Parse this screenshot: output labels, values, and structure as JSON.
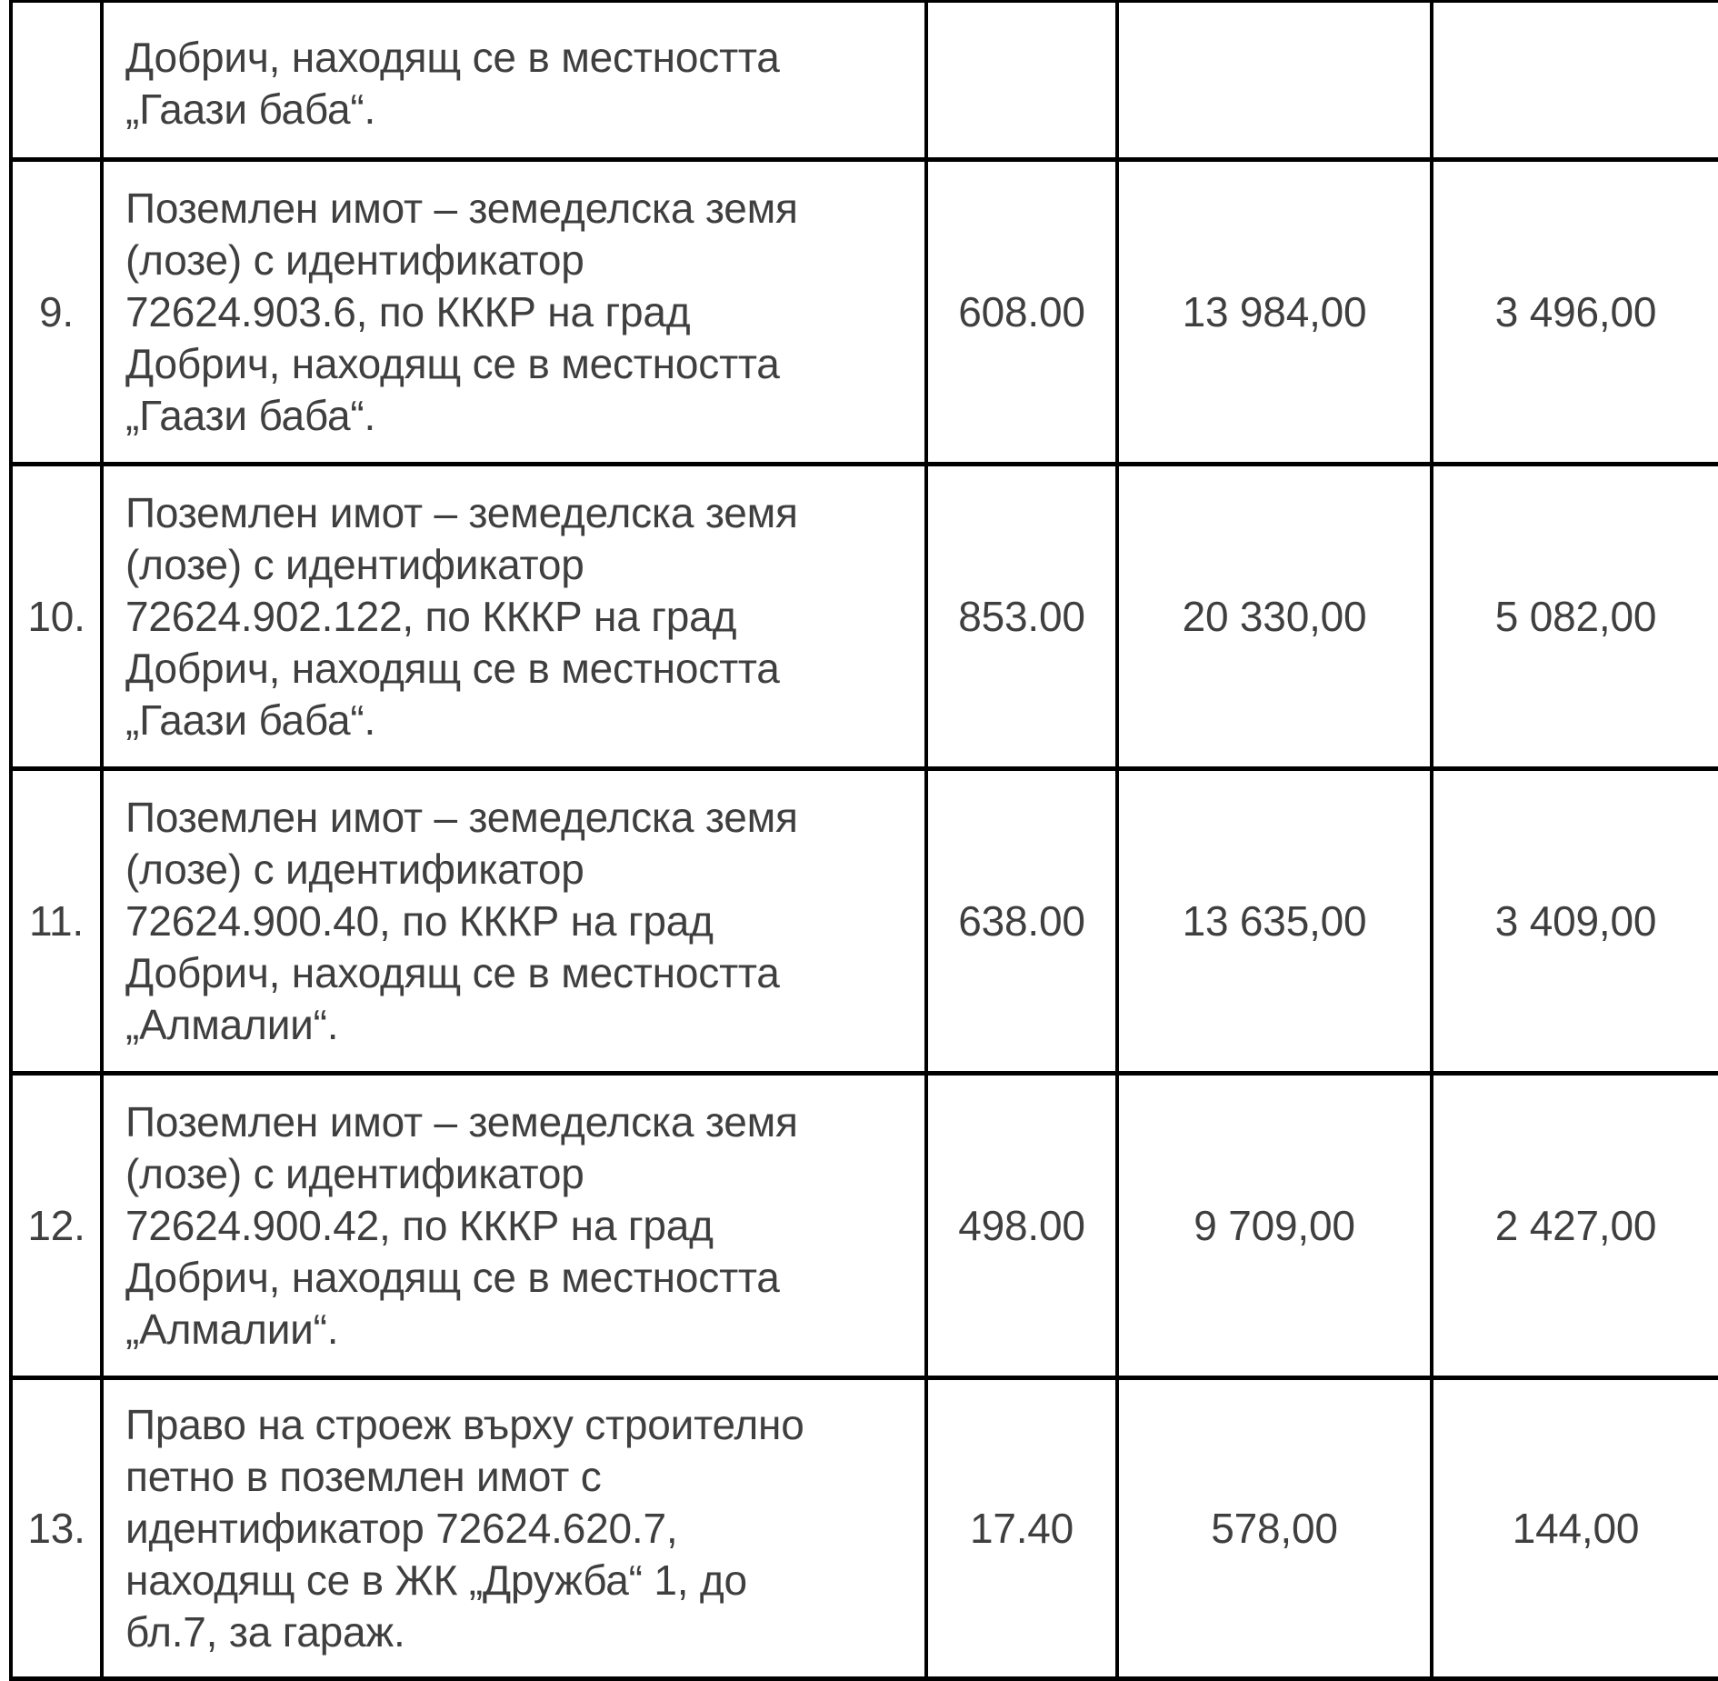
{
  "document": {
    "language": "bg",
    "text_color": "#3f3f3f",
    "border_color": "#000000",
    "background_color": "#ffffff"
  },
  "table": {
    "rows": [
      {
        "partial": true,
        "number": "",
        "description": "Добрич, находящ се в местността\n„Гаази баба“.",
        "area": "",
        "value1": "",
        "value2": ""
      },
      {
        "partial": false,
        "number": "9.",
        "description": "Поземлен имот – земеделска земя\n(лозе) с идентификатор\n72624.903.6, по КККР на град\nДобрич, находящ се в местността\n„Гаази баба“.",
        "area": "608.00",
        "value1": "13 984,00",
        "value2": "3 496,00"
      },
      {
        "partial": false,
        "number": "10.",
        "description": "Поземлен имот – земеделска земя\n(лозе) с идентификатор\n72624.902.122, по КККР на град\nДобрич, находящ се в местността\n„Гаази баба“.",
        "area": "853.00",
        "value1": "20 330,00",
        "value2": "5 082,00"
      },
      {
        "partial": false,
        "number": "11.",
        "description": "Поземлен имот – земеделска земя\n(лозе) с идентификатор\n72624.900.40, по КККР на град\nДобрич, находящ се в местността\n„Алмалии“.",
        "area": "638.00",
        "value1": "13 635,00",
        "value2": "3 409,00"
      },
      {
        "partial": false,
        "number": "12.",
        "description": "Поземлен имот – земеделска земя\n(лозе) с идентификатор\n72624.900.42, по КККР на град\nДобрич, находящ се в местността\n„Алмалии“.",
        "area": "498.00",
        "value1": "9 709,00",
        "value2": "2 427,00"
      },
      {
        "partial": false,
        "number": "13.",
        "description": "Право на строеж върху строително\nпетно в поземлен имот с\nидентификатор 72624.620.7,\nнаходящ се в ЖК „Дружба“ 1, до\nбл.7, за гараж.",
        "area": "17.40",
        "value1": "578,00",
        "value2": "144,00"
      }
    ]
  }
}
